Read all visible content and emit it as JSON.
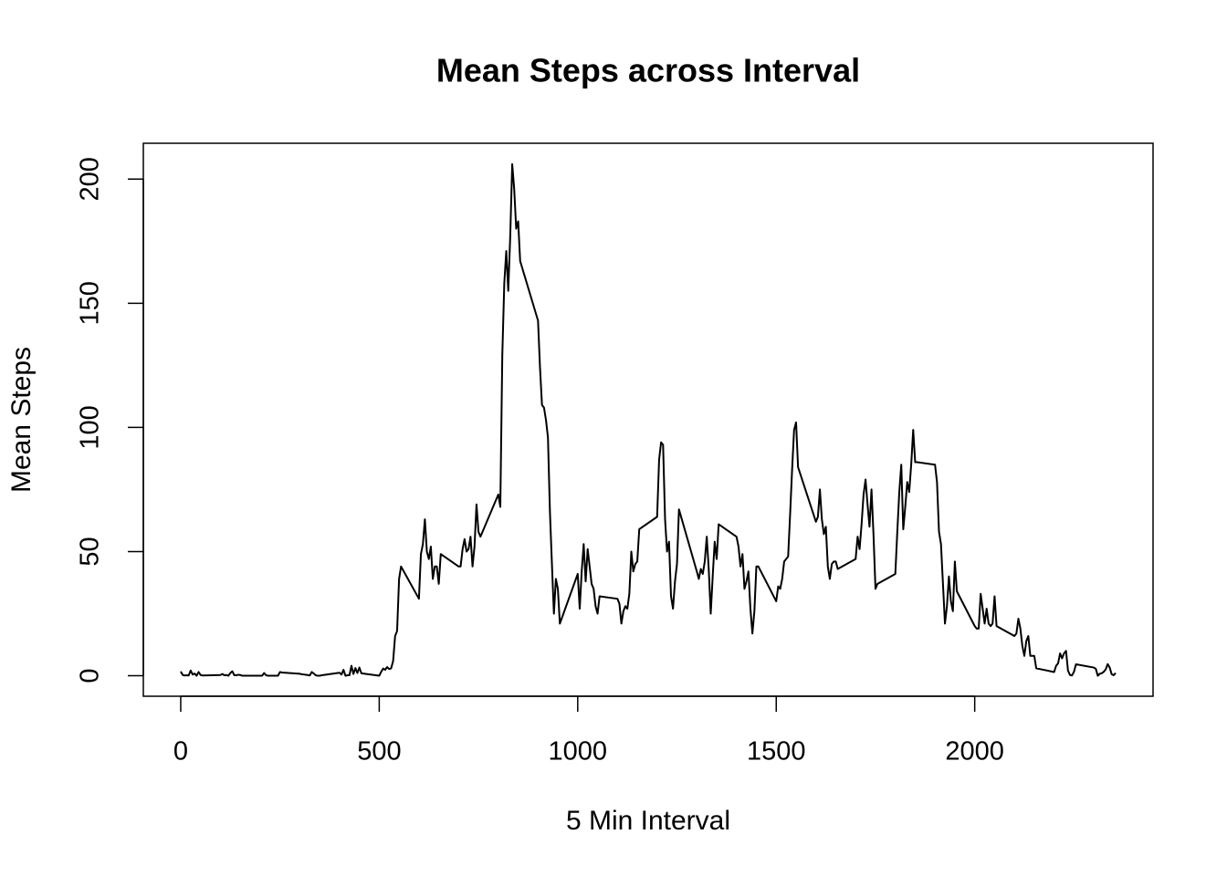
{
  "chart_data": {
    "type": "line",
    "title": "Mean Steps across Interval",
    "x_label": "5 Min Interval",
    "y_label": "Mean Steps",
    "xlim": [
      -94.2,
      2449.2
    ],
    "ylim": [
      -8.25,
      214.42
    ],
    "xticks": [
      0,
      500,
      1000,
      1500,
      2000
    ],
    "yticks": [
      0,
      50,
      100,
      150,
      200
    ],
    "series": [
      {
        "name": "Mean Steps",
        "color": "#000000",
        "x": [
          0,
          5,
          10,
          15,
          20,
          25,
          30,
          35,
          40,
          45,
          50,
          55,
          100,
          105,
          110,
          115,
          120,
          125,
          130,
          135,
          140,
          145,
          150,
          155,
          200,
          205,
          210,
          215,
          220,
          225,
          230,
          235,
          240,
          245,
          250,
          255,
          300,
          305,
          310,
          315,
          320,
          325,
          330,
          335,
          340,
          345,
          350,
          355,
          400,
          405,
          410,
          415,
          420,
          425,
          430,
          435,
          440,
          445,
          450,
          455,
          500,
          505,
          510,
          515,
          520,
          525,
          530,
          535,
          540,
          545,
          550,
          555,
          600,
          605,
          610,
          615,
          620,
          625,
          630,
          635,
          640,
          645,
          650,
          655,
          700,
          705,
          710,
          715,
          720,
          725,
          730,
          735,
          740,
          745,
          750,
          755,
          800,
          805,
          810,
          815,
          820,
          825,
          830,
          835,
          840,
          845,
          850,
          855,
          900,
          905,
          910,
          915,
          920,
          925,
          930,
          935,
          940,
          945,
          950,
          955,
          1000,
          1005,
          1010,
          1015,
          1020,
          1025,
          1030,
          1035,
          1040,
          1045,
          1050,
          1055,
          1100,
          1105,
          1110,
          1115,
          1120,
          1125,
          1130,
          1135,
          1140,
          1145,
          1150,
          1155,
          1200,
          1205,
          1210,
          1215,
          1220,
          1225,
          1230,
          1235,
          1240,
          1245,
          1250,
          1255,
          1300,
          1305,
          1310,
          1315,
          1320,
          1325,
          1330,
          1335,
          1340,
          1345,
          1350,
          1355,
          1400,
          1405,
          1410,
          1415,
          1420,
          1425,
          1430,
          1435,
          1440,
          1445,
          1450,
          1455,
          1500,
          1505,
          1510,
          1515,
          1520,
          1525,
          1530,
          1535,
          1540,
          1545,
          1550,
          1555,
          1600,
          1605,
          1610,
          1615,
          1620,
          1625,
          1630,
          1635,
          1640,
          1645,
          1650,
          1655,
          1700,
          1705,
          1710,
          1715,
          1720,
          1725,
          1730,
          1735,
          1740,
          1745,
          1750,
          1755,
          1800,
          1805,
          1810,
          1815,
          1820,
          1825,
          1830,
          1835,
          1840,
          1845,
          1850,
          1855,
          1900,
          1905,
          1910,
          1915,
          1920,
          1925,
          1930,
          1935,
          1940,
          1945,
          1950,
          1955,
          2000,
          2005,
          2010,
          2015,
          2020,
          2025,
          2030,
          2035,
          2040,
          2045,
          2050,
          2055,
          2100,
          2105,
          2110,
          2115,
          2120,
          2125,
          2130,
          2135,
          2140,
          2145,
          2150,
          2155,
          2200,
          2205,
          2210,
          2215,
          2220,
          2225,
          2230,
          2235,
          2240,
          2245,
          2250,
          2255,
          2300,
          2305,
          2310,
          2315,
          2320,
          2325,
          2330,
          2335,
          2340,
          2345,
          2350,
          2355
        ],
        "values": [
          1.7,
          0.3,
          0.1,
          0.2,
          0.1,
          2.1,
          0.5,
          0.9,
          0,
          1.5,
          0.3,
          0.1,
          0.3,
          0.7,
          0.2,
          0.3,
          0,
          1.1,
          1.8,
          0.2,
          0.2,
          0.4,
          0.3,
          0,
          0,
          0,
          1.1,
          0.2,
          0,
          0,
          0,
          0,
          0,
          0,
          1.5,
          1.3,
          0.8,
          0.6,
          0.5,
          0.4,
          0.3,
          0.1,
          1.5,
          0.9,
          0.2,
          0,
          0,
          0.2,
          1.2,
          0.5,
          2.4,
          0,
          0.2,
          0.2,
          4.0,
          0.7,
          3.1,
          1.1,
          3.3,
          1.0,
          0,
          1.6,
          2.9,
          2.4,
          3.5,
          2.7,
          3.0,
          5.9,
          16,
          18,
          39,
          44,
          31,
          49,
          53,
          63,
          50,
          47,
          52,
          39,
          44,
          44,
          37,
          49,
          44,
          44,
          51,
          55,
          50,
          51,
          56,
          44,
          52,
          69,
          58,
          56,
          73,
          68,
          129,
          158,
          171,
          155,
          177,
          206,
          196,
          180,
          183,
          167,
          143,
          124,
          109,
          108,
          103,
          96,
          66,
          45,
          25,
          39,
          35,
          21,
          41,
          27,
          42,
          53,
          38,
          51,
          44,
          37,
          35,
          28,
          25,
          32,
          31,
          29,
          21,
          26,
          28,
          27,
          33,
          50,
          42,
          45,
          46,
          59,
          64,
          87,
          94,
          93,
          63,
          50,
          54,
          32,
          27,
          38,
          45,
          67,
          42,
          39,
          43,
          41,
          46,
          56,
          43,
          25,
          40,
          54,
          47,
          61,
          56,
          52,
          44,
          49,
          35,
          38,
          42,
          27,
          17,
          26,
          44,
          44,
          30,
          36,
          35,
          39,
          46,
          47,
          48,
          65,
          83,
          99,
          102,
          84,
          62,
          64,
          75,
          63,
          57,
          60,
          44,
          39,
          45,
          46,
          46,
          43,
          47,
          56,
          51,
          61,
          73,
          79,
          69,
          60,
          75,
          57,
          35,
          37,
          41,
          58,
          74,
          85,
          59,
          68,
          78,
          74,
          85,
          99,
          86,
          86,
          85,
          78,
          58,
          53,
          37,
          21,
          28,
          40,
          30,
          26,
          46,
          34,
          20,
          19,
          19,
          33,
          27,
          21,
          27,
          21,
          20,
          21,
          32,
          20,
          16,
          17,
          23,
          19,
          12,
          8,
          14,
          16,
          8,
          8,
          8,
          3,
          1.5,
          4,
          5,
          9,
          7,
          9,
          10,
          2,
          0.3,
          0.1,
          1.6,
          4.6,
          3.3,
          2.8,
          0,
          0.8,
          1,
          1.6,
          2.6,
          4.7,
          3.3,
          0.6,
          0.2,
          1.1
        ]
      }
    ]
  }
}
